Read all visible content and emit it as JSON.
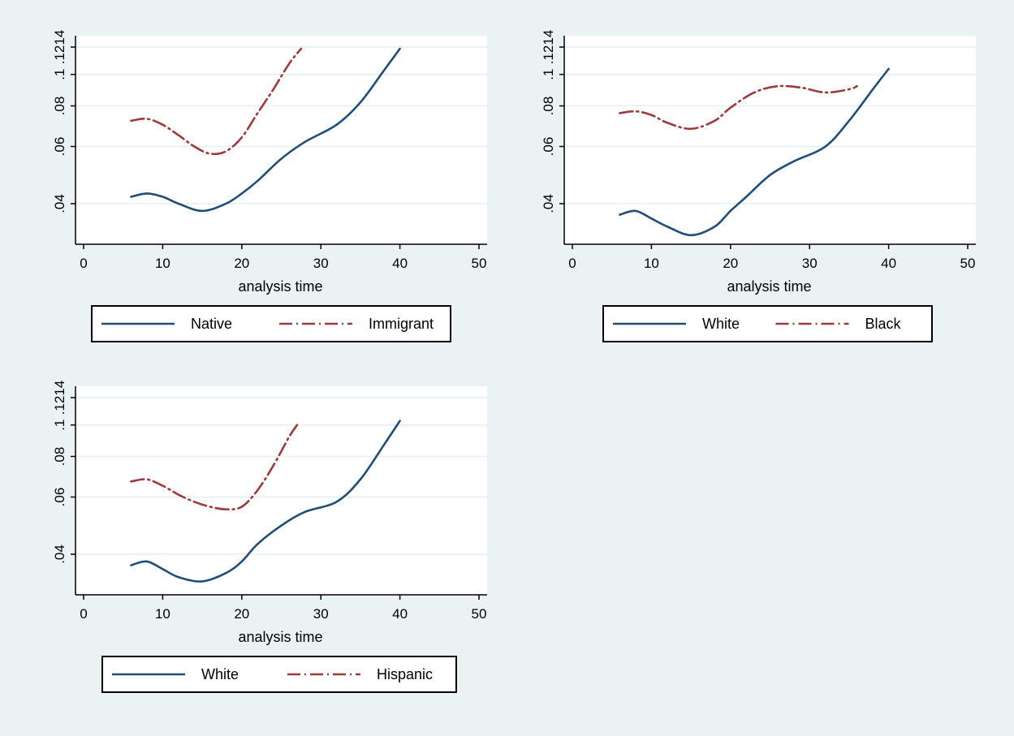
{
  "chart_data": [
    {
      "type": "line",
      "xlabel": "analysis time",
      "ylabel": "",
      "xlim": [
        0,
        50
      ],
      "ylim": [
        0.03,
        0.1214
      ],
      "y_scale": "log",
      "x_ticks": [
        "0",
        "10",
        "20",
        "30",
        "40",
        "50"
      ],
      "y_ticks": [
        ".04",
        ".06",
        ".08",
        ".1",
        ".1214"
      ],
      "grid": true,
      "legend_position": "bottom",
      "series": [
        {
          "name": "Native",
          "color": "#1f4e79",
          "dash": "solid",
          "x": [
            6,
            8,
            10,
            12,
            15,
            18,
            20,
            22,
            25,
            28,
            32,
            35,
            38,
            40
          ],
          "y": [
            0.042,
            0.043,
            0.042,
            0.04,
            0.038,
            0.04,
            0.043,
            0.047,
            0.055,
            0.062,
            0.07,
            0.082,
            0.103,
            0.12
          ]
        },
        {
          "name": "Immigrant",
          "color": "#9e3a3a",
          "dash": "dashdot",
          "x": [
            6,
            8,
            10,
            12,
            14,
            16,
            18,
            20,
            22,
            24,
            26,
            27.5
          ],
          "y": [
            0.072,
            0.073,
            0.07,
            0.065,
            0.06,
            0.057,
            0.058,
            0.064,
            0.076,
            0.09,
            0.108,
            0.12
          ]
        }
      ]
    },
    {
      "type": "line",
      "xlabel": "analysis time",
      "ylabel": "",
      "xlim": [
        0,
        50
      ],
      "ylim": [
        0.03,
        0.1214
      ],
      "y_scale": "log",
      "x_ticks": [
        "0",
        "10",
        "20",
        "30",
        "40",
        "50"
      ],
      "y_ticks": [
        ".04",
        ".06",
        ".08",
        ".1",
        ".1214"
      ],
      "grid": true,
      "legend_position": "bottom",
      "series": [
        {
          "name": "White",
          "color": "#1f4e79",
          "dash": "solid",
          "x": [
            6,
            8,
            10,
            12,
            15,
            18,
            20,
            22,
            25,
            28,
            32,
            35,
            38,
            40
          ],
          "y": [
            0.037,
            0.038,
            0.036,
            0.034,
            0.032,
            0.034,
            0.038,
            0.042,
            0.049,
            0.054,
            0.06,
            0.072,
            0.09,
            0.104
          ]
        },
        {
          "name": "Black",
          "color": "#9e3a3a",
          "dash": "dashdot",
          "x": [
            6,
            8,
            10,
            12,
            15,
            18,
            20,
            23,
            26,
            29,
            32,
            35,
            36
          ],
          "y": [
            0.076,
            0.077,
            0.075,
            0.071,
            0.068,
            0.072,
            0.079,
            0.088,
            0.092,
            0.091,
            0.088,
            0.09,
            0.092
          ]
        }
      ]
    },
    {
      "type": "line",
      "xlabel": "analysis time",
      "ylabel": "",
      "xlim": [
        0,
        50
      ],
      "ylim": [
        0.03,
        0.1214
      ],
      "y_scale": "log",
      "x_ticks": [
        "0",
        "10",
        "20",
        "30",
        "40",
        "50"
      ],
      "y_ticks": [
        ".04",
        ".06",
        ".08",
        ".1",
        ".1214"
      ],
      "grid": true,
      "legend_position": "bottom",
      "series": [
        {
          "name": "White",
          "color": "#1f4e79",
          "dash": "solid",
          "x": [
            6,
            8,
            10,
            12,
            15,
            18,
            20,
            22,
            25,
            28,
            32,
            35,
            38,
            40
          ],
          "y": [
            0.037,
            0.038,
            0.036,
            0.034,
            0.033,
            0.035,
            0.038,
            0.043,
            0.049,
            0.054,
            0.058,
            0.068,
            0.087,
            0.103
          ]
        },
        {
          "name": "Hispanic",
          "color": "#9e3a3a",
          "dash": "dashdot",
          "x": [
            6,
            8,
            10,
            12,
            14,
            16,
            18,
            20,
            22,
            24,
            26,
            27
          ],
          "y": [
            0.067,
            0.068,
            0.065,
            0.061,
            0.058,
            0.056,
            0.055,
            0.056,
            0.063,
            0.075,
            0.092,
            0.1
          ]
        }
      ]
    }
  ]
}
